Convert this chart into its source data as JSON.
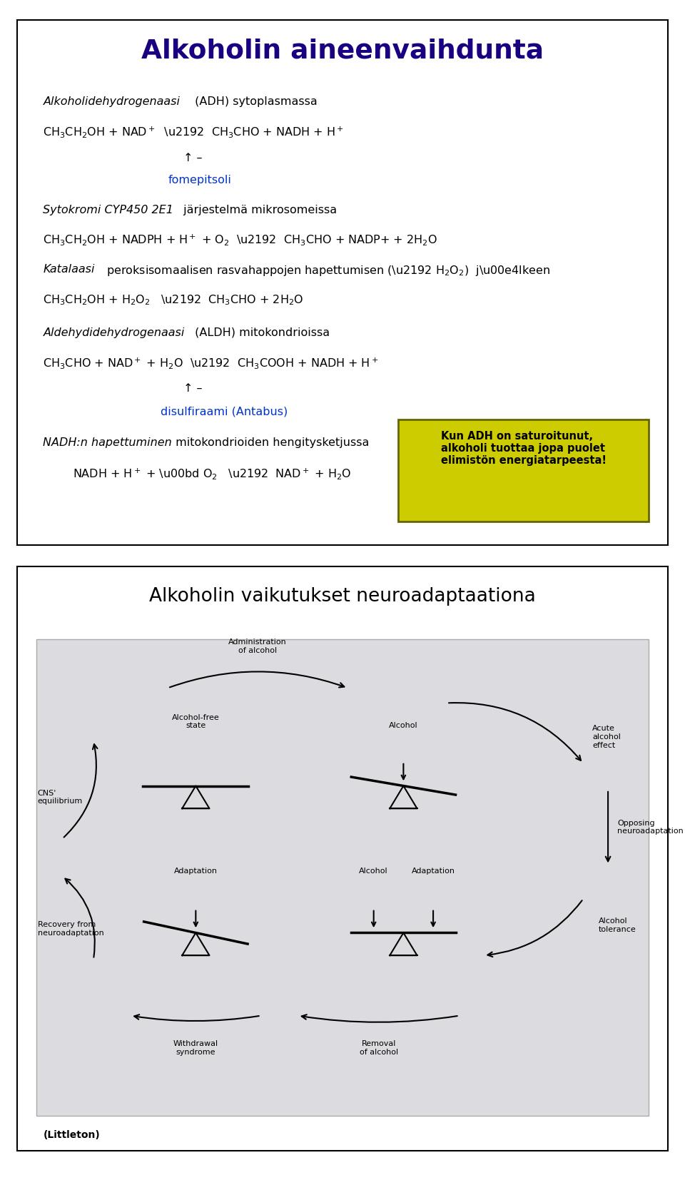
{
  "panel1_title": "Alkoholin aineenvaihdunta",
  "panel1_title_color": "#1a0080",
  "panel1_bg": "#ffffff",
  "panel1_border": "#000000",
  "panel2_title": "Alkoholin vaikutukset neuroadaptaationa",
  "panel2_bg": "#ffffff",
  "panel2_inner_bg": "#dcdce0",
  "yellow_box_text": "Kun ADH on saturoitunut,\nalkoholi tuottaa jopa puolet\nelimistön energiatarpeesta!",
  "yellow_box_bg": "#cccc00",
  "yellow_box_border": "#888800",
  "fomepitsoli_color": "#0033cc",
  "disulfiraami_color": "#0033cc",
  "littleton_text": "(Littleton)",
  "page_bg": "#ffffff"
}
